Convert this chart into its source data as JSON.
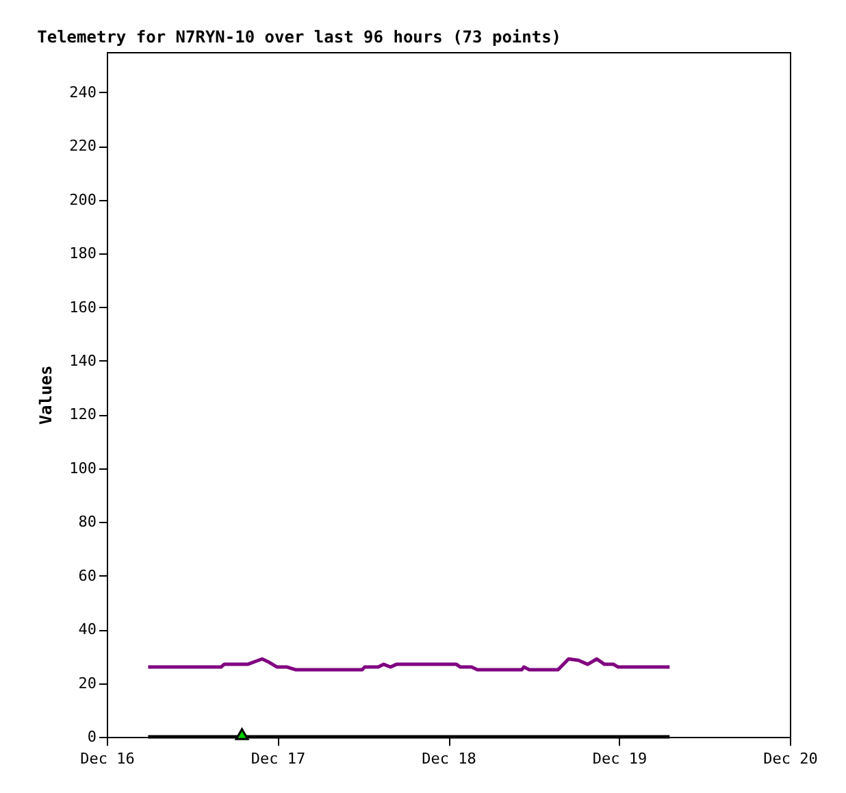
{
  "chart_data": {
    "type": "line",
    "title": "Telemetry for N7RYN-10 over last 96 hours (73 points)",
    "ylabel": "Values",
    "xlim": [
      "--12-16",
      "--12-20"
    ],
    "xticks": [
      {
        "value": "--12-16",
        "label": "Dec 16"
      },
      {
        "value": "--12-17",
        "label": "Dec 17"
      },
      {
        "value": "--12-18",
        "label": "Dec 18"
      },
      {
        "value": "--12-19",
        "label": "Dec 19"
      },
      {
        "value": "--12-20",
        "label": "Dec 20"
      }
    ],
    "ylim": [
      0,
      255
    ],
    "yticks": [
      0,
      20,
      40,
      60,
      80,
      100,
      120,
      140,
      160,
      180,
      200,
      220,
      240
    ],
    "grid": false,
    "line_style": "solid",
    "series": [
      {
        "color": "#800080",
        "x": [
          "--12-16T05:49",
          "--12-16T16:04",
          "--12-16T16:30",
          "--12-16T19:47",
          "--12-16T21:50",
          "--12-16T22:39",
          "--12-16T23:56",
          "--12-17T01:21",
          "--12-17T02:30",
          "--12-17T11:54",
          "--12-17T12:14",
          "--12-17T14:09",
          "--12-17T14:55",
          "--12-17T15:53",
          "--12-17T16:42",
          "--12-18T01:09",
          "--12-18T01:40",
          "--12-18T03:16",
          "--12-18T04:05",
          "--12-18T10:19",
          "--12-18T10:37",
          "--12-18T11:23",
          "--12-18T15:25",
          "--12-18T16:54",
          "--12-18T18:18",
          "--12-18T19:35",
          "--12-18T20:52",
          "--12-18T21:57",
          "--12-18T23:14",
          "--12-18T23:52",
          "--12-19T07:06"
        ],
        "values": [
          26,
          26,
          27,
          27,
          29,
          28,
          26,
          26,
          25,
          25,
          26,
          26,
          27,
          26,
          27,
          27,
          26,
          26,
          25,
          25,
          26,
          25,
          25,
          29,
          28.5,
          27,
          29,
          27,
          27,
          26,
          26
        ]
      },
      {
        "color": "#000000",
        "x": [
          "--12-16T05:49",
          "--12-19T07:06"
        ],
        "values": [
          0,
          0
        ]
      },
      {
        "type": "scatter",
        "marker": "triangle",
        "color": "#00cc00",
        "x": [
          "--12-16T19:00"
        ],
        "values": [
          1
        ]
      }
    ]
  }
}
